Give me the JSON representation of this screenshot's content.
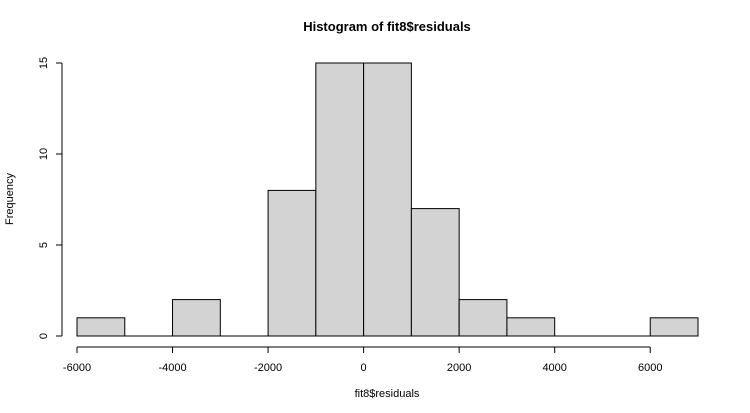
{
  "chart_data": {
    "type": "bar",
    "title": "Histogram of fit8$residuals",
    "xlabel": "fit8$residuals",
    "ylabel": "Frequency",
    "bin_width": 1000,
    "bins": [
      {
        "start": -6000,
        "end": -5000,
        "count": 1
      },
      {
        "start": -5000,
        "end": -4000,
        "count": 0
      },
      {
        "start": -4000,
        "end": -3000,
        "count": 2
      },
      {
        "start": -3000,
        "end": -2000,
        "count": 0
      },
      {
        "start": -2000,
        "end": -1000,
        "count": 8
      },
      {
        "start": -1000,
        "end": 0,
        "count": 15
      },
      {
        "start": 0,
        "end": 1000,
        "count": 15
      },
      {
        "start": 1000,
        "end": 2000,
        "count": 7
      },
      {
        "start": 2000,
        "end": 3000,
        "count": 2
      },
      {
        "start": 3000,
        "end": 4000,
        "count": 1
      },
      {
        "start": 4000,
        "end": 5000,
        "count": 0
      },
      {
        "start": 5000,
        "end": 6000,
        "count": 0
      },
      {
        "start": 6000,
        "end": 7000,
        "count": 1
      }
    ],
    "xlim": [
      -6000,
      7000
    ],
    "ylim": [
      0,
      15
    ],
    "x_ticks": [
      -6000,
      -4000,
      -2000,
      0,
      2000,
      4000,
      6000
    ],
    "x_tick_labels": [
      "-6000",
      "-4000",
      "-2000",
      "0",
      "2000",
      "4000",
      "6000"
    ],
    "y_ticks": [
      0,
      5,
      10,
      15
    ],
    "y_tick_labels": [
      "0",
      "5",
      "10",
      "15"
    ],
    "grid": false,
    "colors": {
      "bar_fill": "#d3d3d3",
      "bar_stroke": "#000000"
    }
  }
}
